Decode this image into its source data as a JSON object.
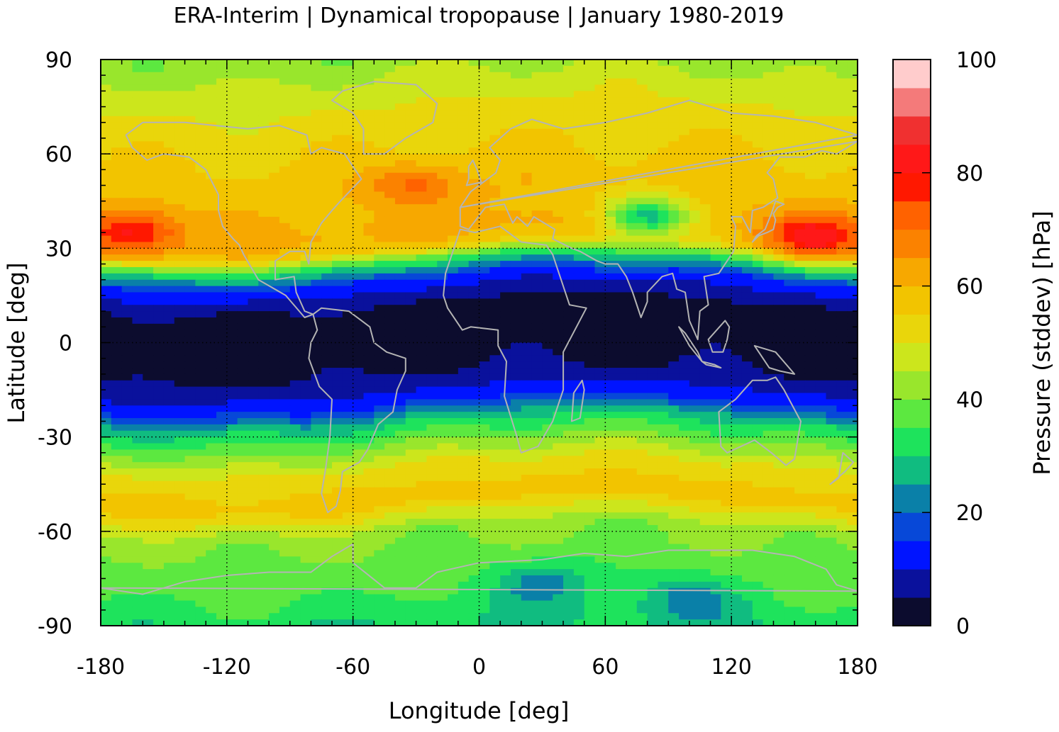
{
  "chart_data": {
    "type": "heatmap",
    "title": "ERA-Interim | Dynamical tropopause | January 1980-2019",
    "xlabel": "Longitude [deg]",
    "ylabel": "Latitude [deg]",
    "colorbar_label": "Pressure (stddev) [hPa]",
    "xlim": [
      -180,
      180
    ],
    "ylim": [
      -90,
      90
    ],
    "xticks": [
      "-180",
      "-120",
      "-60",
      "0",
      "60",
      "120",
      "180"
    ],
    "yticks": [
      "-90",
      "-60",
      "-30",
      "0",
      "30",
      "60",
      "90"
    ],
    "colorbar_range": [
      0,
      100
    ],
    "colorbar_ticks": [
      "0",
      "20",
      "40",
      "60",
      "80",
      "100"
    ],
    "grid": "dotted",
    "colorbar_colors": [
      "#0c0c2e",
      "#0a119c",
      "#0014ff",
      "#0748d8",
      "#0a80a8",
      "#10bc80",
      "#1ee35c",
      "#5ce840",
      "#99e62c",
      "#cce61c",
      "#e9d60b",
      "#f2c400",
      "#f7a800",
      "#fb8200",
      "#ff6200",
      "#ff1800",
      "#ff1818",
      "#f03030",
      "#f47a7a",
      "#ffcccc"
    ],
    "zonal_profile": {
      "lat": [
        -90,
        -80,
        -70,
        -60,
        -50,
        -40,
        -30,
        -25,
        -20,
        -15,
        -10,
        -5,
        0,
        5,
        10,
        15,
        20,
        25,
        30,
        35,
        40,
        50,
        60,
        70,
        80,
        90
      ],
      "value": [
        30,
        35,
        38,
        42,
        58,
        51,
        36,
        28,
        15,
        9,
        5,
        3,
        2,
        2,
        3,
        8,
        15,
        32,
        57,
        62,
        60,
        58,
        55,
        52,
        48,
        42
      ]
    },
    "features": [
      {
        "lon": -165,
        "lat": 35,
        "value": 82
      },
      {
        "lon": -30,
        "lat": 50,
        "value": 72
      },
      {
        "lon": 160,
        "lat": 34,
        "value": 82
      },
      {
        "lon": 80,
        "lat": 40,
        "value": 28
      },
      {
        "lon": 100,
        "lat": -82,
        "value": 22
      },
      {
        "lon": 30,
        "lat": -77,
        "value": 22
      }
    ]
  }
}
